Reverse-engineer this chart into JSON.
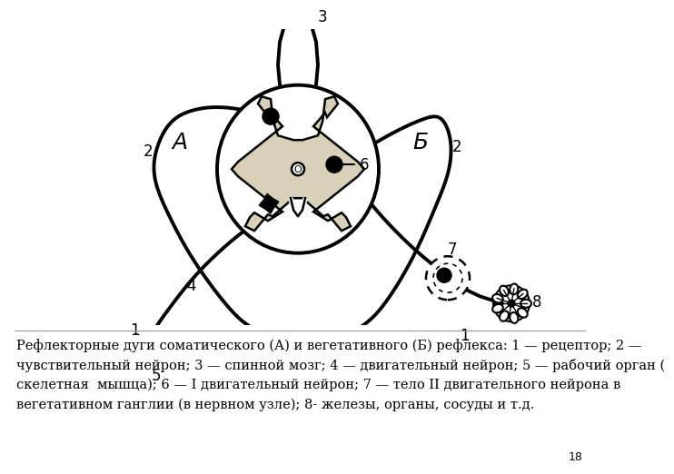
{
  "caption_text": "Рефлекторные дуги соматического (А) и вегетативного (Б) рефлекса: 1 — рецептор; 2 — чувствительный нейрон; 3 — спинной мозг; 4 — двигательный нейрон; 5 — рабочий орган ( скелетная  мышца); 6 — I двигательный нейрон; 7 — тело II двигательного нейрона в вегетативном ганглии (в нервном узле); 8- железы, органы, сосуды и т.д.",
  "page_number": "18",
  "bg_color": "#ffffff",
  "lc": "#000000",
  "gray_matter_color": "#d8d0b8",
  "label_A": "А",
  "label_B": "Б"
}
